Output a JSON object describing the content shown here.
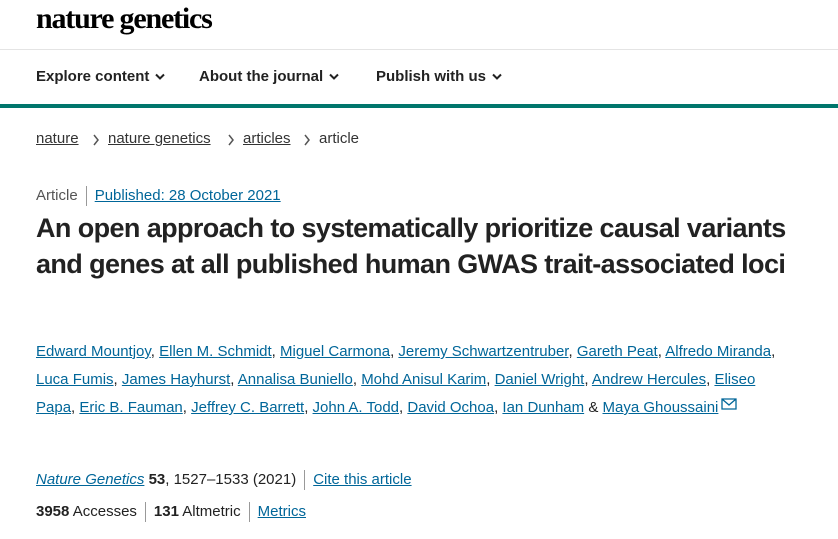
{
  "header": {
    "logo": "nature genetics"
  },
  "nav": [
    "Explore content",
    "About the journal",
    "Publish with us"
  ],
  "breadcrumb": [
    "nature",
    "nature genetics",
    "articles",
    "article"
  ],
  "article": {
    "type": "Article",
    "published": "Published: 28 October 2021",
    "title": "An open approach to systematically prioritize causal variants and genes at all published human GWAS trait-associated loci",
    "authors": [
      "Edward Mountjoy",
      "Ellen M. Schmidt",
      "Miguel Carmona",
      "Jeremy Schwartzentruber",
      "Gareth Peat",
      "Alfredo Miranda",
      "Luca Fumis",
      "James Hayhurst",
      "Annalisa Buniello",
      "Mohd Anisul Karim",
      "Daniel Wright",
      "Andrew Hercules",
      "Eliseo Papa",
      "Eric B. Fauman",
      "Jeffrey C. Barrett",
      "John A. Todd",
      "David Ochoa",
      "Ian Dunham",
      "Maya Ghoussaini"
    ],
    "author_separator": ",",
    "author_conjunction": "&",
    "citation": {
      "journal": "Nature Genetics",
      "volume": "53",
      "pages": "1527–1533 (2021)",
      "cite": "Cite this article"
    },
    "metrics": {
      "accesses": "3958",
      "accesses_label": "Accesses",
      "altmetric": "131",
      "altmetric_label": "Altmetric",
      "link": "Metrics"
    }
  }
}
